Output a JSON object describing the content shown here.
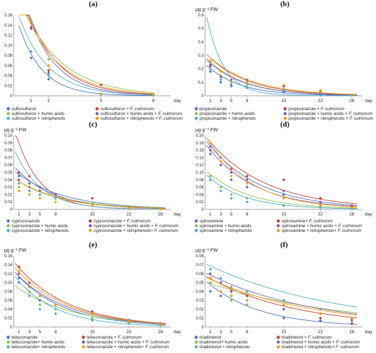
{
  "colors": {
    "blue": "#4472c4",
    "red": "#c0392b",
    "green": "#8fbc4f",
    "purple": "#7d5ba6",
    "teal": "#4bacc6",
    "orange": "#f39c12"
  },
  "chart_data": [
    {
      "type": "scatter",
      "panel_label": "(a)",
      "ylabel": "",
      "xlabel": "day",
      "x_ticks": [
        1,
        2,
        5,
        8
      ],
      "ylim": [
        0,
        0.16
      ],
      "y_step": 0.02,
      "xlim": [
        0,
        9
      ],
      "legend_columns": 2,
      "series": [
        {
          "name": "sulfosulfuron",
          "name_suffix": "",
          "color_key": "blue",
          "x": [
            1,
            2,
            5,
            8
          ],
          "y": [
            0.075,
            0.033,
            0.003,
            0.001
          ],
          "fit": [
            0.12,
            0.75
          ]
        },
        {
          "name": "sulfosulfuron + ",
          "name_suffix": "F. culmorum",
          "color_key": "red",
          "x": [
            1,
            2,
            5,
            8
          ],
          "y": [
            0.136,
            0.05,
            0.022,
            0.003
          ],
          "fit": [
            0.2,
            0.56
          ]
        },
        {
          "name": "sulfosulfuron + humic acids",
          "name_suffix": "",
          "color_key": "green",
          "x": [
            1,
            2,
            5,
            8
          ],
          "y": [
            0.145,
            0.072,
            0.004,
            0.002
          ],
          "fit": [
            0.18,
            0.45
          ]
        },
        {
          "name": "sulfosulfuron + humic acids + ",
          "name_suffix": "F. culmorum",
          "color_key": "purple",
          "x": [
            1,
            2,
            5,
            8
          ],
          "y": [
            0.133,
            0.045,
            0.003,
            0.001
          ],
          "fit": [
            0.2,
            0.62
          ]
        },
        {
          "name": "sulfosulfuron + nitrophenols",
          "name_suffix": "",
          "color_key": "teal",
          "x": [
            1,
            2,
            5,
            8
          ],
          "y": [
            0.088,
            0.04,
            0.003,
            0.001
          ],
          "fit": [
            0.14,
            0.6
          ]
        },
        {
          "name": "sulfosulfuron + nitrophenols + ",
          "name_suffix": "F. culmorum",
          "color_key": "orange",
          "x": [
            1,
            2,
            5,
            8
          ],
          "y": [
            0.148,
            0.06,
            0.004,
            0.002
          ],
          "fit": [
            0.18,
            0.5
          ]
        }
      ]
    },
    {
      "type": "scatter",
      "panel_label": "(b)",
      "ylabel": "μg g⁻¹ FW",
      "xlabel": "day",
      "x_ticks": [
        1,
        3,
        5,
        8,
        15,
        22,
        28
      ],
      "ylim": [
        0,
        0.6
      ],
      "y_step": 0.1,
      "xlim": [
        0,
        30
      ],
      "legend_columns": 2,
      "series": [
        {
          "name": "propiconazole",
          "name_suffix": "",
          "color_key": "blue",
          "x": [
            1,
            3,
            5,
            8,
            15,
            22,
            28
          ],
          "y": [
            0.18,
            0.1,
            0.08,
            0.06,
            0.03,
            0.01,
            0.005
          ],
          "fit": [
            0.22,
            0.16
          ]
        },
        {
          "name": "propiconazole + ",
          "name_suffix": "F. culmorum",
          "color_key": "red",
          "x": [
            1,
            3,
            5,
            8,
            15,
            22,
            28
          ],
          "y": [
            0.22,
            0.14,
            0.1,
            0.1,
            0.07,
            0.03,
            0.01
          ],
          "fit": [
            0.3,
            0.13
          ]
        },
        {
          "name": "propiconazole + humic acids",
          "name_suffix": "",
          "color_key": "green",
          "x": [
            1,
            3,
            5,
            8,
            15,
            22,
            28
          ],
          "y": [
            0.25,
            0.15,
            0.1,
            0.08,
            0.05,
            0.02,
            0.005
          ],
          "fit": [
            0.27,
            0.14
          ]
        },
        {
          "name": "propiconazole + humic acids + ",
          "name_suffix": "F. culmorum",
          "color_key": "purple",
          "x": [
            1,
            3,
            5,
            8,
            15,
            22,
            28
          ],
          "y": [
            0.23,
            0.14,
            0.12,
            0.12,
            0.04,
            0.02,
            0.005
          ],
          "fit": [
            0.26,
            0.14
          ]
        },
        {
          "name": "propiconazole + nitrophenols",
          "name_suffix": "",
          "color_key": "teal",
          "x": [
            1,
            3,
            5,
            8,
            15,
            22,
            28
          ],
          "y": [
            0.2,
            0.12,
            0.07,
            0.06,
            0.04,
            0.02,
            0.005
          ],
          "fit": [
            0.55,
            0.3
          ]
        },
        {
          "name": "propiconazole + nitrophenols + ",
          "name_suffix": "F. culmorum",
          "color_key": "orange",
          "x": [
            1,
            3,
            5,
            8,
            15,
            22,
            28
          ],
          "y": [
            0.26,
            0.18,
            0.14,
            0.1,
            0.08,
            0.04,
            0.01
          ],
          "fit": [
            0.3,
            0.12
          ]
        }
      ]
    },
    {
      "type": "scatter",
      "panel_label": "(c)",
      "ylabel": "μg g⁻¹ FW",
      "xlabel": "day",
      "x_ticks": [
        1,
        3,
        5,
        8,
        15,
        22,
        28
      ],
      "ylim": [
        0,
        0.1
      ],
      "y_step": 0.01,
      "xlim": [
        0,
        30
      ],
      "legend_columns": 2,
      "series": [
        {
          "name": "cyproconazole",
          "name_suffix": "",
          "color_key": "blue",
          "x": [
            1,
            3,
            5,
            8,
            15,
            22,
            28
          ],
          "y": [
            0.045,
            0.035,
            0.025,
            0.015,
            0.005,
            0.002,
            0.001
          ],
          "fit": [
            0.05,
            0.11
          ]
        },
        {
          "name": "cyproconazole + ",
          "name_suffix": "F. culmorum",
          "color_key": "red",
          "x": [
            1,
            3,
            5,
            8,
            15,
            22,
            28
          ],
          "y": [
            0.05,
            0.045,
            0.03,
            0.02,
            0.015,
            0.003,
            0.001
          ],
          "fit": [
            0.1,
            0.22
          ]
        },
        {
          "name": "cyproconazole + humic acids",
          "name_suffix": "",
          "color_key": "green",
          "x": [
            1,
            3,
            5,
            8,
            15,
            22,
            28
          ],
          "y": [
            0.03,
            0.025,
            0.02,
            0.015,
            0.008,
            0.002,
            0.001
          ],
          "fit": [
            0.04,
            0.11
          ]
        },
        {
          "name": "cyproconazole + humic acids + ",
          "name_suffix": "F. culmorum",
          "color_key": "purple",
          "x": [
            1,
            3,
            5,
            8,
            15,
            22,
            28
          ],
          "y": [
            0.04,
            0.03,
            0.025,
            0.02,
            0.005,
            0.002,
            0.001
          ],
          "fit": [
            0.055,
            0.14
          ]
        },
        {
          "name": "cyproconazole + nitrophenols",
          "name_suffix": "",
          "color_key": "teal",
          "x": [
            1,
            3,
            5,
            8,
            15,
            22,
            28
          ],
          "y": [
            0.035,
            0.025,
            0.02,
            0.015,
            0.005,
            0.002,
            0.001
          ],
          "fit": [
            0.075,
            0.2
          ]
        },
        {
          "name": "cyproconazole + nitrophenols+ ",
          "name_suffix": "F. culmorum",
          "color_key": "orange",
          "x": [
            1,
            3,
            5,
            8,
            15,
            22,
            28
          ],
          "y": [
            0.025,
            0.02,
            0.015,
            0.01,
            0.005,
            0.002,
            0.001
          ],
          "fit": [
            0.04,
            0.12
          ]
        }
      ]
    },
    {
      "type": "scatter",
      "panel_label": "(d)",
      "ylabel": "μg g⁻¹ FW",
      "xlabel": "day",
      "x_ticks": [
        1,
        3,
        5,
        8,
        15,
        22,
        28
      ],
      "ylim": [
        0,
        0.2
      ],
      "y_step": 0.02,
      "xlim": [
        0,
        30
      ],
      "legend_columns": 2,
      "series": [
        {
          "name": "spiroxamine",
          "name_suffix": "",
          "color_key": "blue",
          "x": [
            1,
            3,
            5,
            8,
            15,
            22,
            28
          ],
          "y": [
            0.17,
            0.14,
            0.1,
            0.08,
            0.04,
            0.015,
            0.008
          ],
          "fit": [
            0.18,
            0.1
          ]
        },
        {
          "name": "spiroxamine+ ",
          "name_suffix": "F. culmorum",
          "color_key": "red",
          "x": [
            1,
            3,
            5,
            8,
            15,
            22,
            28
          ],
          "y": [
            0.16,
            0.12,
            0.11,
            0.09,
            0.08,
            0.03,
            0.01
          ],
          "fit": [
            0.19,
            0.09
          ]
        },
        {
          "name": "spiroxamine + humic acids",
          "name_suffix": "",
          "color_key": "green",
          "x": [
            1,
            3,
            5,
            8,
            15,
            22,
            28
          ],
          "y": [
            0.09,
            0.06,
            0.04,
            0.03,
            0.01,
            0.005,
            0.002
          ],
          "fit": [
            0.1,
            0.12
          ]
        },
        {
          "name": "spiroxamine + humic acids + ",
          "name_suffix": "F. culmorum",
          "color_key": "purple",
          "x": [
            1,
            3,
            5,
            8,
            15,
            22,
            28
          ],
          "y": [
            0.15,
            0.12,
            0.08,
            0.06,
            0.05,
            0.02,
            0.008
          ],
          "fit": [
            0.17,
            0.11
          ]
        },
        {
          "name": "spiroxamine + nitrophenols",
          "name_suffix": "",
          "color_key": "teal",
          "x": [
            1,
            3,
            5,
            8,
            15,
            22,
            28
          ],
          "y": [
            0.08,
            0.05,
            0.03,
            0.02,
            0.01,
            0.005,
            0.002
          ],
          "fit": [
            0.09,
            0.14
          ]
        },
        {
          "name": "spiroxamine + nitrophenols+ ",
          "name_suffix": "F. culmorum",
          "color_key": "orange",
          "x": [
            1,
            3,
            5,
            8,
            15,
            22,
            28
          ],
          "y": [
            0.18,
            0.13,
            0.09,
            0.07,
            0.03,
            0.01,
            0.005
          ],
          "fit": [
            0.19,
            0.12
          ]
        }
      ]
    },
    {
      "type": "scatter",
      "panel_label": "(e)",
      "ylabel": "μg g⁻¹ FW",
      "xlabel": "day",
      "x_ticks": [
        1,
        3,
        5,
        8,
        15,
        22,
        28
      ],
      "ylim": [
        0,
        0.16
      ],
      "y_step": 0.02,
      "xlim": [
        0,
        30
      ],
      "legend_columns": 2,
      "series": [
        {
          "name": "tebuconazole",
          "name_suffix": "",
          "color_key": "blue",
          "x": [
            1,
            3,
            5,
            8,
            15,
            22,
            28
          ],
          "y": [
            0.11,
            0.09,
            0.06,
            0.04,
            0.02,
            0.01,
            0.005
          ],
          "fit": [
            0.12,
            0.11
          ]
        },
        {
          "name": "tebuconazole + ",
          "name_suffix": "F. culmorum",
          "color_key": "red",
          "x": [
            1,
            3,
            5,
            8,
            15,
            22,
            28
          ],
          "y": [
            0.135,
            0.1,
            0.07,
            0.05,
            0.03,
            0.015,
            0.008
          ],
          "fit": [
            0.14,
            0.1
          ]
        },
        {
          "name": "tebuconazole+ humic acids",
          "name_suffix": "",
          "color_key": "green",
          "x": [
            1,
            3,
            5,
            8,
            15,
            22,
            28
          ],
          "y": [
            0.1,
            0.08,
            0.05,
            0.04,
            0.02,
            0.01,
            0.005
          ],
          "fit": [
            0.09,
            0.09
          ]
        },
        {
          "name": "tebuconazole + humic acids + ",
          "name_suffix": "F. culmorum",
          "color_key": "purple",
          "x": [
            1,
            3,
            5,
            8,
            15,
            22,
            28
          ],
          "y": [
            0.12,
            0.09,
            0.06,
            0.05,
            0.035,
            0.015,
            0.008
          ],
          "fit": [
            0.12,
            0.1
          ]
        },
        {
          "name": "tebuconazole+ nitrophenols",
          "name_suffix": "",
          "color_key": "teal",
          "x": [
            1,
            3,
            5,
            8,
            15,
            22,
            28
          ],
          "y": [
            0.1,
            0.07,
            0.04,
            0.03,
            0.015,
            0.008,
            0.004
          ],
          "fit": [
            0.11,
            0.13
          ]
        },
        {
          "name": "tebuconazole + nitrophenols+ ",
          "name_suffix": "F. culmorum",
          "color_key": "orange",
          "x": [
            1,
            3,
            5,
            8,
            15,
            22,
            28
          ],
          "y": [
            0.125,
            0.09,
            0.07,
            0.05,
            0.03,
            0.012,
            0.006
          ],
          "fit": [
            0.13,
            0.1
          ]
        }
      ]
    },
    {
      "type": "scatter",
      "panel_label": "(f)",
      "ylabel": "μg g⁻¹ FW",
      "xlabel": "day",
      "x_ticks": [
        1,
        3,
        5,
        8,
        15,
        22,
        28
      ],
      "ylim": [
        0,
        0.08
      ],
      "y_step": 0.01,
      "xlim": [
        0,
        30
      ],
      "legend_columns": 2,
      "series": [
        {
          "name": "triadimenol",
          "name_suffix": "",
          "color_key": "blue",
          "x": [
            1,
            3,
            5,
            8,
            15,
            22,
            28
          ],
          "y": [
            0.04,
            0.035,
            0.03,
            0.025,
            0.01,
            0.007,
            0.004
          ],
          "fit": [
            0.05,
            0.1
          ]
        },
        {
          "name": "triadimenol + ",
          "name_suffix": "F. culmorum",
          "color_key": "red",
          "x": [
            1,
            3,
            5,
            8,
            15,
            22,
            28
          ],
          "y": [
            0.055,
            0.05,
            0.04,
            0.035,
            0.02,
            0.01,
            0.004
          ],
          "fit": [
            0.056,
            0.06
          ]
        },
        {
          "name": "triadimenol+ humic acids",
          "name_suffix": "",
          "color_key": "green",
          "x": [
            1,
            3,
            5,
            8,
            15,
            22,
            28
          ],
          "y": [
            0.05,
            0.04,
            0.03,
            0.025,
            0.02,
            0.015,
            0.007
          ],
          "fit": [
            0.05,
            0.04
          ]
        },
        {
          "name": "triadimenol + humic acids + ",
          "name_suffix": "F. culmorum",
          "color_key": "purple",
          "x": [
            1,
            3,
            5,
            8,
            15,
            22,
            28
          ],
          "y": [
            0.06,
            0.05,
            0.035,
            0.03,
            0.02,
            0.015,
            0.008
          ],
          "fit": [
            0.06,
            0.05
          ]
        },
        {
          "name": "triadimenol + nitrophenols",
          "name_suffix": "",
          "color_key": "teal",
          "x": [
            1,
            3,
            5,
            8,
            15,
            22,
            28
          ],
          "y": [
            0.065,
            0.055,
            0.045,
            0.04,
            0.03,
            0.02,
            0.01
          ],
          "fit": [
            0.07,
            0.04
          ]
        },
        {
          "name": "triadimenol + nitrophenols+ ",
          "name_suffix": "F. culmorum",
          "color_key": "orange",
          "x": [
            1,
            3,
            5,
            8,
            15,
            22,
            28
          ],
          "y": [
            0.055,
            0.04,
            0.035,
            0.03,
            0.025,
            0.015,
            0.01
          ],
          "fit": [
            0.055,
            0.05
          ]
        }
      ]
    }
  ]
}
